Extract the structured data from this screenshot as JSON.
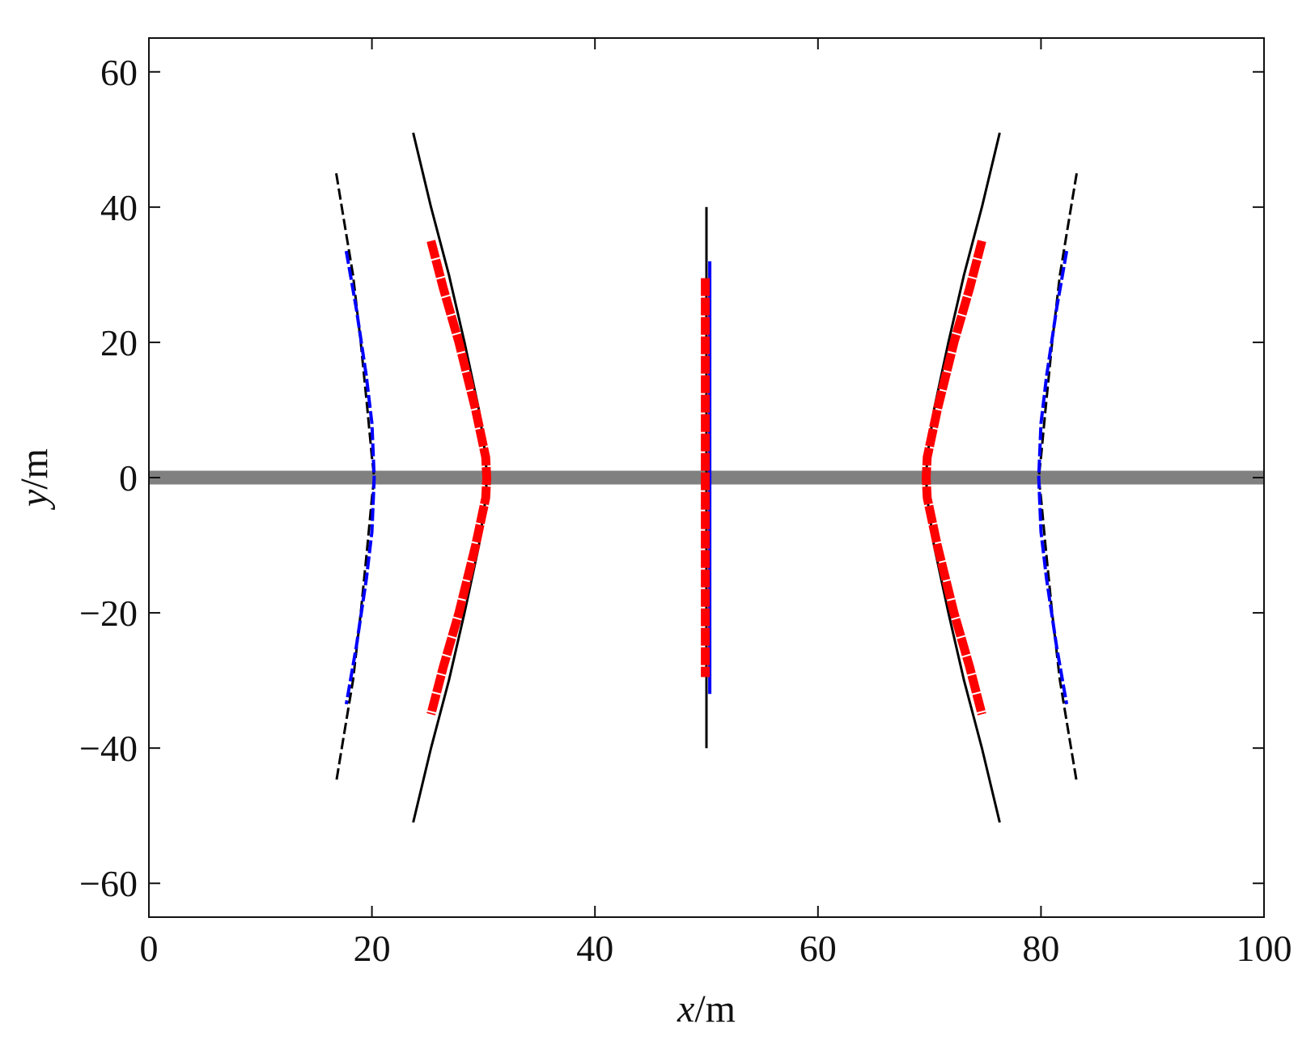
{
  "chart_data": {
    "type": "line",
    "title": "",
    "xlabel_var": "x",
    "xlabel_unit": "/m",
    "ylabel_var": "y",
    "ylabel_unit": "/m",
    "xlim": [
      0,
      100
    ],
    "ylim": [
      -65,
      65
    ],
    "x_ticks": [
      "0",
      "20",
      "40",
      "60",
      "80",
      "100"
    ],
    "y_ticks": [
      "−60",
      "−40",
      "−20",
      "0",
      "20",
      "40",
      "60"
    ],
    "grid": false,
    "legend": "none",
    "reference_band": {
      "y": 0,
      "color": "#808080"
    },
    "series": [
      {
        "color": "#000000",
        "style": "dashed",
        "x": [
          16.8,
          17.5,
          18.3,
          19.0,
          19.6,
          20.0,
          20.2,
          20.0,
          19.6,
          19.0,
          18.3,
          17.5,
          16.8
        ],
        "y": [
          45,
          38,
          30,
          20,
          10,
          3,
          0,
          -3,
          -10,
          -20,
          -30,
          -38,
          -45
        ]
      },
      {
        "color": "#0000ff",
        "style": "dashed",
        "x": [
          17.7,
          18.6,
          19.5,
          20.0,
          20.2,
          20.0,
          19.5,
          18.6,
          17.7
        ],
        "y": [
          33.5,
          25,
          15,
          8,
          0,
          -8,
          -15,
          -25,
          -33.5
        ]
      },
      {
        "color": "#000000",
        "style": "solid",
        "x": [
          23.7,
          25.3,
          26.9,
          28.3,
          29.6,
          30.2,
          30.3,
          30.2,
          29.6,
          28.3,
          26.9,
          25.3,
          23.7
        ],
        "y": [
          51,
          40,
          30,
          20,
          10,
          3,
          0,
          -3,
          -10,
          -20,
          -30,
          -40,
          -51
        ]
      },
      {
        "color": "#ff0000",
        "style": "solid",
        "x": [
          25.3,
          26.4,
          27.8,
          29.3,
          30.2,
          30.3,
          30.2,
          29.3,
          27.8,
          26.4,
          25.3
        ],
        "y": [
          35,
          28,
          20,
          10,
          3,
          0,
          -3,
          -10,
          -20,
          -28,
          -35
        ]
      },
      {
        "color": "#000000",
        "style": "solid",
        "x": [
          50.0,
          50.0
        ],
        "y": [
          40,
          -40
        ]
      },
      {
        "color": "#0000ff",
        "style": "solid",
        "x": [
          50.3,
          50.3
        ],
        "y": [
          32,
          -32
        ]
      },
      {
        "color": "#ff0000",
        "style": "solid",
        "x": [
          49.9,
          49.9
        ],
        "y": [
          29.5,
          -29.5
        ]
      },
      {
        "color": "#000000",
        "style": "solid",
        "x": [
          76.3,
          74.7,
          73.1,
          71.7,
          70.4,
          69.8,
          69.7,
          69.8,
          70.4,
          71.7,
          73.1,
          74.7,
          76.3
        ],
        "y": [
          51,
          40,
          30,
          20,
          10,
          3,
          0,
          -3,
          -10,
          -20,
          -30,
          -40,
          -51
        ]
      },
      {
        "color": "#ff0000",
        "style": "solid",
        "x": [
          74.7,
          73.6,
          72.2,
          70.7,
          69.8,
          69.7,
          69.8,
          70.7,
          72.2,
          73.6,
          74.7
        ],
        "y": [
          35,
          28,
          20,
          10,
          3,
          0,
          -3,
          -10,
          -20,
          -28,
          -35
        ]
      },
      {
        "color": "#000000",
        "style": "dashed",
        "x": [
          83.2,
          82.5,
          81.7,
          81.0,
          80.4,
          80.0,
          79.8,
          80.0,
          80.4,
          81.0,
          81.7,
          82.5,
          83.2
        ],
        "y": [
          45,
          38,
          30,
          20,
          10,
          3,
          0,
          -3,
          -10,
          -20,
          -30,
          -38,
          -45
        ]
      },
      {
        "color": "#0000ff",
        "style": "dashed",
        "x": [
          82.3,
          81.4,
          80.5,
          80.0,
          79.8,
          80.0,
          80.5,
          81.4,
          82.3
        ],
        "y": [
          33.5,
          25,
          15,
          8,
          0,
          -8,
          -15,
          -25,
          -33.5
        ]
      }
    ]
  }
}
